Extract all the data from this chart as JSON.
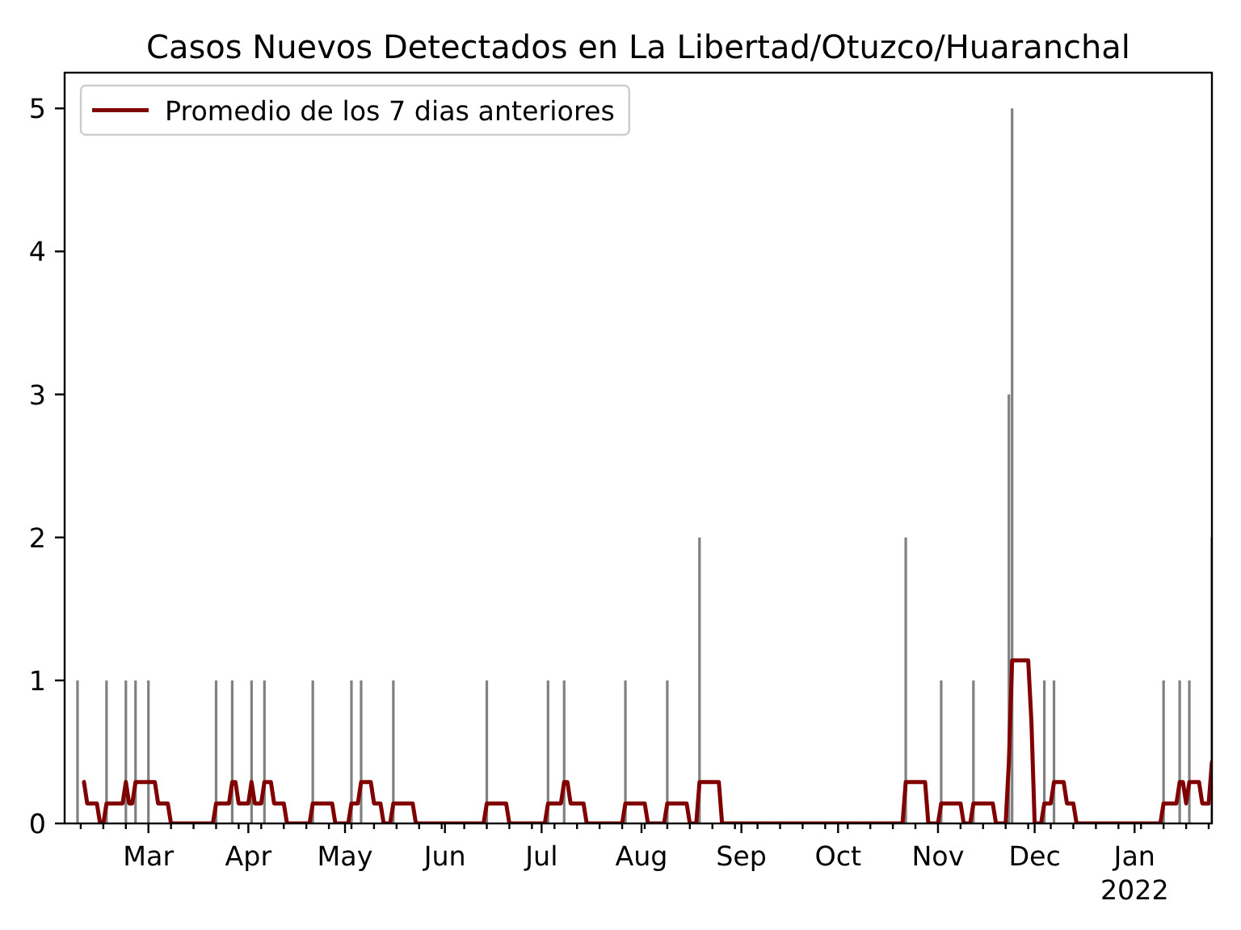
{
  "chart_data": {
    "type": "bar",
    "title": "Casos Nuevos Detectados en La Libertad/Otuzco/Huaranchal",
    "xlim": [
      "2021-02-03",
      "2022-01-25"
    ],
    "xticks": [
      {
        "value": "2021-02-08",
        "label": null
      },
      {
        "value": "2021-02-15",
        "label": null
      },
      {
        "value": "2021-02-22",
        "label": null
      },
      {
        "value": "2021-03-01",
        "label": "Mar"
      },
      {
        "value": "2021-03-08",
        "label": null
      },
      {
        "value": "2021-03-15",
        "label": null
      },
      {
        "value": "2021-03-22",
        "label": null
      },
      {
        "value": "2021-03-29",
        "label": null
      },
      {
        "value": "2021-04-01",
        "label": "Apr"
      },
      {
        "value": "2021-04-05",
        "label": null
      },
      {
        "value": "2021-04-12",
        "label": null
      },
      {
        "value": "2021-04-19",
        "label": null
      },
      {
        "value": "2021-04-26",
        "label": null
      },
      {
        "value": "2021-05-01",
        "label": "May"
      },
      {
        "value": "2021-05-03",
        "label": null
      },
      {
        "value": "2021-05-10",
        "label": null
      },
      {
        "value": "2021-05-17",
        "label": null
      },
      {
        "value": "2021-05-24",
        "label": null
      },
      {
        "value": "2021-05-31",
        "label": null
      },
      {
        "value": "2021-06-01",
        "label": "Jun"
      },
      {
        "value": "2021-06-07",
        "label": null
      },
      {
        "value": "2021-06-14",
        "label": null
      },
      {
        "value": "2021-06-21",
        "label": null
      },
      {
        "value": "2021-06-28",
        "label": null
      },
      {
        "value": "2021-07-01",
        "label": "Jul"
      },
      {
        "value": "2021-07-05",
        "label": null
      },
      {
        "value": "2021-07-12",
        "label": null
      },
      {
        "value": "2021-07-19",
        "label": null
      },
      {
        "value": "2021-07-26",
        "label": null
      },
      {
        "value": "2021-08-01",
        "label": "Aug"
      },
      {
        "value": "2021-08-02",
        "label": null
      },
      {
        "value": "2021-08-09",
        "label": null
      },
      {
        "value": "2021-08-16",
        "label": null
      },
      {
        "value": "2021-08-23",
        "label": null
      },
      {
        "value": "2021-08-30",
        "label": null
      },
      {
        "value": "2021-09-01",
        "label": "Sep"
      },
      {
        "value": "2021-09-06",
        "label": null
      },
      {
        "value": "2021-09-13",
        "label": null
      },
      {
        "value": "2021-09-20",
        "label": null
      },
      {
        "value": "2021-09-27",
        "label": null
      },
      {
        "value": "2021-10-01",
        "label": "Oct"
      },
      {
        "value": "2021-10-04",
        "label": null
      },
      {
        "value": "2021-10-11",
        "label": null
      },
      {
        "value": "2021-10-18",
        "label": null
      },
      {
        "value": "2021-10-25",
        "label": null
      },
      {
        "value": "2021-11-01",
        "label": "Nov"
      },
      {
        "value": "2021-11-08",
        "label": null
      },
      {
        "value": "2021-11-15",
        "label": null
      },
      {
        "value": "2021-11-22",
        "label": null
      },
      {
        "value": "2021-11-29",
        "label": null
      },
      {
        "value": "2021-12-01",
        "label": "Dec"
      },
      {
        "value": "2021-12-06",
        "label": null
      },
      {
        "value": "2021-12-13",
        "label": null
      },
      {
        "value": "2021-12-20",
        "label": null
      },
      {
        "value": "2021-12-27",
        "label": null
      },
      {
        "value": "2022-01-01",
        "label": "Jan\n2022"
      },
      {
        "value": "2022-01-03",
        "label": null
      },
      {
        "value": "2022-01-10",
        "label": null
      },
      {
        "value": "2022-01-17",
        "label": null
      },
      {
        "value": "2022-01-24",
        "label": null
      }
    ],
    "ylim": [
      0,
      5.25
    ],
    "yticks": [
      0,
      1,
      2,
      3,
      4,
      5
    ],
    "legend": "top left",
    "series": [
      {
        "color": "#808080",
        "x": [
          "2021-02-07",
          "2021-02-16",
          "2021-02-22",
          "2021-02-25",
          "2021-03-01",
          "2021-03-22",
          "2021-03-27",
          "2021-04-02",
          "2021-04-06",
          "2021-04-21",
          "2021-05-03",
          "2021-05-06",
          "2021-05-16",
          "2021-06-14",
          "2021-07-03",
          "2021-07-08",
          "2021-07-27",
          "2021-08-09",
          "2021-08-19",
          "2021-10-22",
          "2021-11-02",
          "2021-11-12",
          "2021-11-23",
          "2021-11-24",
          "2021-12-04",
          "2021-12-07",
          "2022-01-10",
          "2022-01-15",
          "2022-01-18",
          "2022-01-25"
        ],
        "values": [
          1,
          1,
          1,
          1,
          1,
          1,
          1,
          1,
          1,
          1,
          1,
          1,
          1,
          1,
          1,
          1,
          1,
          1,
          2,
          2,
          1,
          1,
          3,
          5,
          1,
          1,
          1,
          1,
          1,
          2
        ]
      },
      {
        "type": "line",
        "name": "Promedio de los 7 dias anteriores",
        "color": "#800000",
        "x": [
          "2021-02-09",
          "2021-02-10",
          "2021-02-13",
          "2021-02-14",
          "2021-02-15",
          "2021-02-16",
          "2021-02-21",
          "2021-02-22",
          "2021-02-23",
          "2021-02-24",
          "2021-02-25",
          "2021-03-03",
          "2021-03-04",
          "2021-03-07",
          "2021-03-08",
          "2021-03-21",
          "2021-03-22",
          "2021-03-26",
          "2021-03-27",
          "2021-03-28",
          "2021-03-29",
          "2021-04-01",
          "2021-04-02",
          "2021-04-03",
          "2021-04-05",
          "2021-04-06",
          "2021-04-08",
          "2021-04-09",
          "2021-04-12",
          "2021-04-13",
          "2021-04-20",
          "2021-04-21",
          "2021-04-27",
          "2021-04-28",
          "2021-05-02",
          "2021-05-03",
          "2021-05-05",
          "2021-05-06",
          "2021-05-09",
          "2021-05-10",
          "2021-05-12",
          "2021-05-13",
          "2021-05-15",
          "2021-05-16",
          "2021-05-22",
          "2021-05-23",
          "2021-06-13",
          "2021-06-14",
          "2021-06-20",
          "2021-06-21",
          "2021-07-02",
          "2021-07-03",
          "2021-07-07",
          "2021-07-08",
          "2021-07-09",
          "2021-07-10",
          "2021-07-14",
          "2021-07-15",
          "2021-07-26",
          "2021-07-27",
          "2021-08-02",
          "2021-08-03",
          "2021-08-08",
          "2021-08-09",
          "2021-08-15",
          "2021-08-16",
          "2021-08-18",
          "2021-08-19",
          "2021-08-25",
          "2021-08-26",
          "2021-10-21",
          "2021-10-22",
          "2021-10-28",
          "2021-10-29",
          "2021-11-01",
          "2021-11-02",
          "2021-11-08",
          "2021-11-09",
          "2021-11-11",
          "2021-11-12",
          "2021-11-18",
          "2021-11-19",
          "2021-11-22",
          "2021-11-23",
          "2021-11-24",
          "2021-11-29",
          "2021-11-30",
          "2021-12-01",
          "2021-12-03",
          "2021-12-04",
          "2021-12-06",
          "2021-12-07",
          "2021-12-10",
          "2021-12-11",
          "2021-12-13",
          "2021-12-14",
          "2022-01-09",
          "2022-01-10",
          "2022-01-14",
          "2022-01-15",
          "2022-01-16",
          "2022-01-17",
          "2022-01-18",
          "2022-01-21",
          "2022-01-22",
          "2022-01-24",
          "2022-01-25"
        ],
        "values": [
          0.29,
          0.14,
          0.14,
          0,
          0,
          0.14,
          0.14,
          0.29,
          0.14,
          0.14,
          0.29,
          0.29,
          0.14,
          0.14,
          0,
          0,
          0.14,
          0.14,
          0.29,
          0.29,
          0.14,
          0.14,
          0.29,
          0.14,
          0.14,
          0.29,
          0.29,
          0.14,
          0.14,
          0,
          0,
          0.14,
          0.14,
          0,
          0,
          0.14,
          0.14,
          0.29,
          0.29,
          0.14,
          0.14,
          0,
          0,
          0.14,
          0.14,
          0,
          0,
          0.14,
          0.14,
          0,
          0,
          0.14,
          0.14,
          0.29,
          0.29,
          0.14,
          0.14,
          0,
          0,
          0.14,
          0.14,
          0,
          0,
          0.14,
          0.14,
          0,
          0,
          0.29,
          0.29,
          0,
          0,
          0.29,
          0.29,
          0,
          0,
          0.14,
          0.14,
          0,
          0,
          0.14,
          0.14,
          0,
          0,
          0.43,
          1.14,
          1.14,
          0.71,
          0,
          0,
          0.14,
          0.14,
          0.29,
          0.29,
          0.14,
          0.14,
          0,
          0,
          0.14,
          0.14,
          0.29,
          0.29,
          0.14,
          0.29,
          0.29,
          0.14,
          0.14,
          0.43
        ]
      }
    ]
  }
}
